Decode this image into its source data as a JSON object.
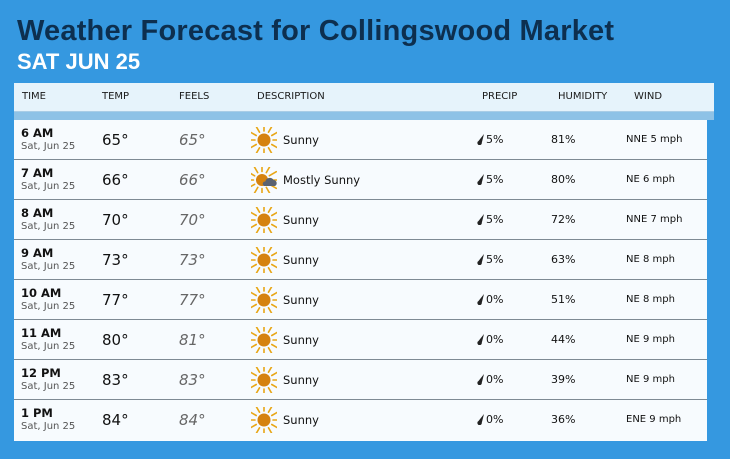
{
  "header": {
    "title": "Weather Forecast for Collingswood Market",
    "subtitle": "SAT JUN 25"
  },
  "columns": [
    "TIME",
    "TEMP",
    "FEELS",
    "DESCRIPTION",
    "PRECIP",
    "HUMIDITY",
    "WIND"
  ],
  "colors": {
    "background": "#3598e0",
    "title": "#0d2f4f",
    "sun": "#e8a615",
    "sun_core": "#d5820f",
    "cloud": "#5a6270"
  },
  "rows": [
    {
      "time": "6 AM",
      "date": "Sat, Jun 25",
      "temp": "65°",
      "feels": "65°",
      "icon": "sun-icon",
      "description": "Sunny",
      "precip": "5%",
      "humidity": "81%",
      "wind": "NNE 5 mph"
    },
    {
      "time": "7 AM",
      "date": "Sat, Jun 25",
      "temp": "66°",
      "feels": "66°",
      "icon": "mostly-sunny-icon",
      "description": "Mostly Sunny",
      "precip": "5%",
      "humidity": "80%",
      "wind": "NE 6 mph"
    },
    {
      "time": "8 AM",
      "date": "Sat, Jun 25",
      "temp": "70°",
      "feels": "70°",
      "icon": "sun-icon",
      "description": "Sunny",
      "precip": "5%",
      "humidity": "72%",
      "wind": "NNE 7 mph"
    },
    {
      "time": "9 AM",
      "date": "Sat, Jun 25",
      "temp": "73°",
      "feels": "73°",
      "icon": "sun-icon",
      "description": "Sunny",
      "precip": "5%",
      "humidity": "63%",
      "wind": "NE 8 mph"
    },
    {
      "time": "10 AM",
      "date": "Sat, Jun 25",
      "temp": "77°",
      "feels": "77°",
      "icon": "sun-icon",
      "description": "Sunny",
      "precip": "0%",
      "humidity": "51%",
      "wind": "NE 8 mph"
    },
    {
      "time": "11 AM",
      "date": "Sat, Jun 25",
      "temp": "80°",
      "feels": "81°",
      "icon": "sun-icon",
      "description": "Sunny",
      "precip": "0%",
      "humidity": "44%",
      "wind": "NE 9 mph"
    },
    {
      "time": "12 PM",
      "date": "Sat, Jun 25",
      "temp": "83°",
      "feels": "83°",
      "icon": "sun-icon",
      "description": "Sunny",
      "precip": "0%",
      "humidity": "39%",
      "wind": "NE 9 mph"
    },
    {
      "time": "1 PM",
      "date": "Sat, Jun 25",
      "temp": "84°",
      "feels": "84°",
      "icon": "sun-icon",
      "description": "Sunny",
      "precip": "0%",
      "humidity": "36%",
      "wind": "ENE 9 mph"
    }
  ]
}
